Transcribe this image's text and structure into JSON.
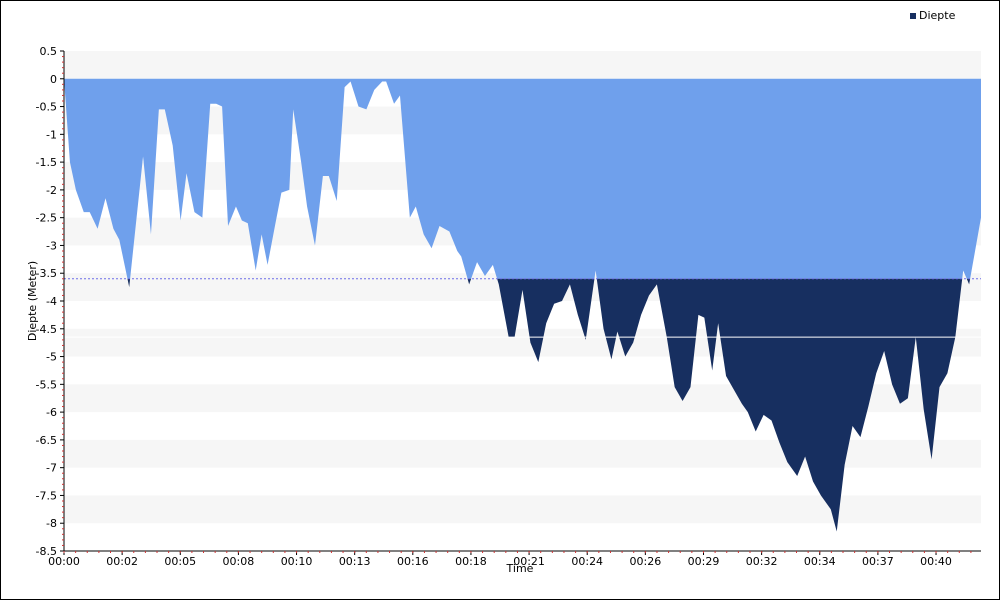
{
  "chart_data": {
    "type": "area",
    "xlabel": "Time",
    "ylabel": "Diepte (Meter)",
    "legend": {
      "label": "Diepte",
      "placement": "top-right"
    },
    "ylim": [
      -8.5,
      0.5
    ],
    "xlim_minutes": [
      0,
      41.8
    ],
    "y_ticks": [
      0.5,
      0,
      -0.5,
      -1,
      -1.5,
      -2,
      -2.5,
      -3,
      -3.5,
      -4,
      -4.5,
      -5,
      -5.5,
      -6,
      -6.5,
      -7,
      -7.5,
      -8,
      -8.5
    ],
    "y_tick_labels": [
      "0.5",
      "0",
      "-0.5",
      "-1",
      "-1.5",
      "-2",
      "-2.5",
      "-3",
      "-3.5",
      "-4",
      "-4.5",
      "-5",
      "-5.5",
      "-6",
      "-6.5",
      "-7",
      "-7.5",
      "-8",
      "-8.5"
    ],
    "x_ticks": [
      {
        "m": 0,
        "label": "00:00"
      },
      {
        "m": 2.65,
        "label": "00:02"
      },
      {
        "m": 5.3,
        "label": "00:05"
      },
      {
        "m": 7.95,
        "label": "00:08"
      },
      {
        "m": 10.6,
        "label": "00:10"
      },
      {
        "m": 13.25,
        "label": "00:13"
      },
      {
        "m": 15.9,
        "label": "00:16"
      },
      {
        "m": 18.55,
        "label": "00:18"
      },
      {
        "m": 21.2,
        "label": "00:21"
      },
      {
        "m": 23.85,
        "label": "00:24"
      },
      {
        "m": 26.5,
        "label": "00:26"
      },
      {
        "m": 29.15,
        "label": "00:29"
      },
      {
        "m": 31.8,
        "label": "00:32"
      },
      {
        "m": 34.45,
        "label": "00:34"
      },
      {
        "m": 37.1,
        "label": "00:37"
      },
      {
        "m": 39.75,
        "label": "00:40"
      }
    ],
    "threshold_lines": [
      {
        "value": -3.6,
        "style": "dotted",
        "color": "#6f6fe8"
      },
      {
        "value": -4.65,
        "style": "solid",
        "color": "#ffffff"
      }
    ],
    "fill_threshold": -3.6,
    "colors": {
      "shallow_fill": "#6fa0ec",
      "deep_fill": "#172f60",
      "band": "#f6f6f6",
      "tick": "#cc3333"
    },
    "series": [
      {
        "name": "Diepte",
        "points": [
          [
            0,
            0
          ],
          [
            0.3,
            -1.5
          ],
          [
            0.6,
            -2
          ],
          [
            1.0,
            -2.4
          ],
          [
            1.3,
            -2.4
          ],
          [
            1.7,
            -2.7
          ],
          [
            2.1,
            -2.15
          ],
          [
            2.5,
            -2.7
          ],
          [
            2.8,
            -2.9
          ],
          [
            3.3,
            -3.75
          ],
          [
            4.0,
            -1.4
          ],
          [
            4.4,
            -2.8
          ],
          [
            4.8,
            -0.55
          ],
          [
            5.1,
            -0.55
          ],
          [
            5.5,
            -1.2
          ],
          [
            5.9,
            -2.55
          ],
          [
            6.2,
            -1.7
          ],
          [
            6.6,
            -2.4
          ],
          [
            7.0,
            -2.5
          ],
          [
            7.4,
            -0.45
          ],
          [
            7.7,
            -0.45
          ],
          [
            8.0,
            -0.5
          ],
          [
            8.3,
            -2.65
          ],
          [
            8.7,
            -2.3
          ],
          [
            9.0,
            -2.55
          ],
          [
            9.3,
            -2.6
          ],
          [
            9.7,
            -3.45
          ],
          [
            10.0,
            -2.8
          ],
          [
            10.3,
            -3.35
          ],
          [
            10.7,
            -2.6
          ],
          [
            11.0,
            -2.05
          ],
          [
            11.4,
            -2.0
          ],
          [
            11.6,
            -0.55
          ],
          [
            12.0,
            -1.5
          ],
          [
            12.3,
            -2.3
          ],
          [
            12.7,
            -3.0
          ],
          [
            13.1,
            -1.75
          ],
          [
            13.4,
            -1.75
          ],
          [
            13.8,
            -2.2
          ],
          [
            14.2,
            -0.15
          ],
          [
            14.5,
            -0.05
          ],
          [
            14.9,
            -0.5
          ],
          [
            15.3,
            -0.55
          ],
          [
            15.7,
            -0.2
          ],
          [
            16.1,
            -0.05
          ],
          [
            16.3,
            -0.05
          ],
          [
            16.7,
            -0.45
          ],
          [
            17.0,
            -0.3
          ],
          [
            17.5,
            -2.5
          ],
          [
            17.8,
            -2.3
          ],
          [
            18.2,
            -2.8
          ],
          [
            18.6,
            -3.05
          ],
          [
            19.0,
            -2.65
          ],
          [
            19.5,
            -2.75
          ],
          [
            19.9,
            -3.1
          ],
          [
            20.1,
            -3.2
          ],
          [
            20.5,
            -3.7
          ],
          [
            20.9,
            -3.3
          ],
          [
            21.3,
            -3.55
          ],
          [
            21.7,
            -3.35
          ],
          [
            22.0,
            -3.7
          ],
          [
            22.5,
            -4.65
          ],
          [
            22.8,
            -4.65
          ],
          [
            23.2,
            -3.8
          ],
          [
            23.6,
            -4.75
          ],
          [
            24.0,
            -5.1
          ],
          [
            24.4,
            -4.4
          ],
          [
            24.8,
            -4.05
          ],
          [
            25.2,
            -4.0
          ],
          [
            25.6,
            -3.7
          ],
          [
            26.0,
            -4.25
          ],
          [
            26.4,
            -4.7
          ],
          [
            26.9,
            -3.45
          ],
          [
            27.3,
            -4.5
          ],
          [
            27.7,
            -5.05
          ],
          [
            28.0,
            -4.55
          ],
          [
            28.4,
            -5.0
          ],
          [
            28.8,
            -4.75
          ],
          [
            29.2,
            -4.25
          ],
          [
            29.6,
            -3.9
          ],
          [
            30.0,
            -3.7
          ],
          [
            30.5,
            -4.65
          ],
          [
            30.9,
            -5.55
          ],
          [
            31.3,
            -5.8
          ],
          [
            31.7,
            -5.55
          ],
          [
            32.1,
            -4.25
          ],
          [
            32.4,
            -4.3
          ],
          [
            32.8,
            -5.25
          ],
          [
            33.1,
            -4.4
          ],
          [
            33.5,
            -5.35
          ],
          [
            33.9,
            -5.6
          ],
          [
            34.3,
            -5.85
          ],
          [
            34.6,
            -6.0
          ],
          [
            35.0,
            -6.35
          ],
          [
            35.4,
            -6.05
          ],
          [
            35.8,
            -6.15
          ],
          [
            36.2,
            -6.55
          ],
          [
            36.6,
            -6.9
          ],
          [
            37.1,
            -7.15
          ],
          [
            37.5,
            -6.8
          ],
          [
            37.9,
            -7.25
          ],
          [
            38.3,
            -7.5
          ],
          [
            38.8,
            -7.75
          ],
          [
            39.1,
            -8.15
          ],
          [
            39.5,
            -6.95
          ],
          [
            39.9,
            -6.25
          ],
          [
            40.3,
            -6.45
          ],
          [
            40.7,
            -5.9
          ],
          [
            41.1,
            -5.3
          ],
          [
            41.5,
            -4.9
          ],
          [
            41.9,
            -5.5
          ],
          [
            42.3,
            -5.85
          ],
          [
            42.7,
            -5.75
          ],
          [
            43.1,
            -4.65
          ],
          [
            43.5,
            -5.95
          ],
          [
            43.9,
            -6.85
          ],
          [
            44.3,
            -5.55
          ],
          [
            44.7,
            -5.3
          ],
          [
            45.1,
            -4.65
          ],
          [
            45.5,
            -3.45
          ],
          [
            45.8,
            -3.7
          ],
          [
            46.1,
            -3.1
          ],
          [
            46.4,
            -2.5
          ]
        ]
      }
    ]
  }
}
